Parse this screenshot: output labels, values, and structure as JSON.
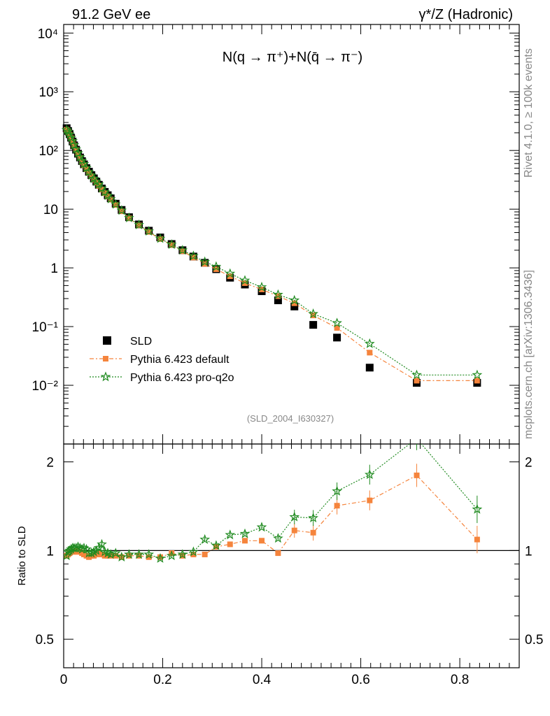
{
  "header": {
    "left": "91.2 GeV ee",
    "right": "γ*/Z (Hadronic)",
    "side_top": "Rivet 4.1.0, ≥ 100k events",
    "side_bottom": "mcplots.cern.ch [arXiv:1306.3436]"
  },
  "chart_data": [
    {
      "type": "scatter",
      "title": "N(q → π⁺)+N(q̄ → π⁻)",
      "watermark": "(SLD_2004_I630327)",
      "yscale": "log",
      "ylim": [
        0.001,
        14000
      ],
      "xlim": [
        0,
        0.92
      ],
      "y_tick_labels": [
        "10⁻²",
        "10⁻¹",
        "1",
        "10",
        "10²",
        "10³",
        "10⁴"
      ],
      "legend": {
        "position": "lower-left",
        "entries": [
          "SLD",
          "Pythia 6.423 default",
          "Pythia 6.423 pro-q2o"
        ]
      },
      "x": [
        0.006,
        0.009,
        0.012,
        0.015,
        0.018,
        0.021,
        0.025,
        0.029,
        0.033,
        0.037,
        0.041,
        0.046,
        0.051,
        0.056,
        0.061,
        0.066,
        0.071,
        0.077,
        0.083,
        0.089,
        0.095,
        0.105,
        0.117,
        0.132,
        0.152,
        0.172,
        0.195,
        0.218,
        0.24,
        0.262,
        0.285,
        0.308,
        0.336,
        0.366,
        0.4,
        0.433,
        0.466,
        0.504,
        0.552,
        0.618,
        0.713,
        0.835
      ],
      "series": [
        {
          "name": "SLD",
          "color": "#000000",
          "marker": "square",
          "values": [
            240,
            215,
            190,
            165,
            142,
            122,
            103,
            88,
            76,
            66,
            58,
            50,
            43.5,
            38,
            33.5,
            29.5,
            26,
            22.5,
            19.7,
            17.3,
            15.3,
            12.4,
            9.7,
            7.3,
            5.5,
            4.3,
            3.3,
            2.55,
            2.0,
            1.56,
            1.22,
            0.95,
            0.68,
            0.52,
            0.4,
            0.28,
            0.22,
            0.107,
            0.065,
            0.02,
            0.011,
            0.011
          ]
        },
        {
          "name": "Pythia 6.423 default",
          "color": "#f5843c",
          "marker": "square",
          "values": [
            225,
            205,
            185,
            162,
            140,
            121,
            102,
            87,
            75,
            64,
            56,
            48,
            41.5,
            36.5,
            32,
            28.5,
            25,
            21.6,
            18.8,
            16.5,
            14.6,
            11.8,
            9.2,
            7.0,
            5.3,
            4.1,
            3.1,
            2.45,
            1.92,
            1.5,
            1.17,
            0.95,
            0.72,
            0.55,
            0.43,
            0.33,
            0.25,
            0.155,
            0.095,
            0.036,
            0.012,
            0.012
          ]
        },
        {
          "name": "Pythia 6.423 pro-q2o",
          "color": "#1f8a1f",
          "marker": "star",
          "values": [
            225,
            210,
            188,
            165,
            145,
            124,
            105,
            90,
            77,
            67,
            59,
            50.5,
            43,
            37.5,
            33,
            29.5,
            26.5,
            22.7,
            19.6,
            17,
            14.9,
            12.1,
            9.5,
            7.1,
            5.4,
            4.2,
            3.15,
            2.5,
            2.0,
            1.6,
            1.27,
            1.05,
            0.8,
            0.61,
            0.47,
            0.35,
            0.28,
            0.165,
            0.115,
            0.051,
            0.015,
            0.015
          ]
        }
      ]
    },
    {
      "type": "line",
      "ylabel": "Ratio to SLD",
      "xlim": [
        0,
        0.92
      ],
      "ylim": [
        0.4,
        2.3
      ],
      "yscale": "log",
      "x_tick_labels": [
        "0",
        "0.2",
        "0.4",
        "0.6",
        "0.8"
      ],
      "y_tick_labels": [
        "0.5",
        "1",
        "2"
      ],
      "reference_line": 1,
      "x": [
        0.006,
        0.009,
        0.012,
        0.015,
        0.018,
        0.021,
        0.025,
        0.029,
        0.033,
        0.037,
        0.041,
        0.046,
        0.051,
        0.056,
        0.061,
        0.066,
        0.071,
        0.077,
        0.083,
        0.089,
        0.095,
        0.105,
        0.117,
        0.132,
        0.152,
        0.172,
        0.195,
        0.218,
        0.24,
        0.262,
        0.285,
        0.308,
        0.336,
        0.366,
        0.4,
        0.433,
        0.466,
        0.504,
        0.552,
        0.618,
        0.713,
        0.835
      ],
      "series": [
        {
          "name": "Pythia 6.423 default",
          "color": "#f5843c",
          "marker": "square",
          "values": [
            0.96,
            0.97,
            0.98,
            0.99,
            0.99,
            0.99,
            1.0,
            0.99,
            0.99,
            0.98,
            0.97,
            0.96,
            0.95,
            0.96,
            0.96,
            0.97,
            0.98,
            0.97,
            0.96,
            0.96,
            0.96,
            0.96,
            0.95,
            0.96,
            0.96,
            0.95,
            0.95,
            0.98,
            0.96,
            0.97,
            0.97,
            1.03,
            1.05,
            1.08,
            1.08,
            0.98,
            1.17,
            1.15,
            1.42,
            1.48,
            1.8,
            1.09
          ]
        },
        {
          "name": "Pythia 6.423 pro-q2o",
          "color": "#1f8a1f",
          "marker": "star",
          "values": [
            0.96,
            0.99,
            1.0,
            1.01,
            1.02,
            1.02,
            1.02,
            1.03,
            1.02,
            1.01,
            1.02,
            1.01,
            0.98,
            0.98,
            0.99,
            1.0,
            1.02,
            1.05,
            0.99,
            0.98,
            0.97,
            0.98,
            0.95,
            0.97,
            0.97,
            0.97,
            0.94,
            0.96,
            0.97,
            0.99,
            1.09,
            1.04,
            1.13,
            1.14,
            1.2,
            1.1,
            1.3,
            1.29,
            1.59,
            1.81,
            2.4,
            1.38
          ]
        }
      ]
    }
  ]
}
